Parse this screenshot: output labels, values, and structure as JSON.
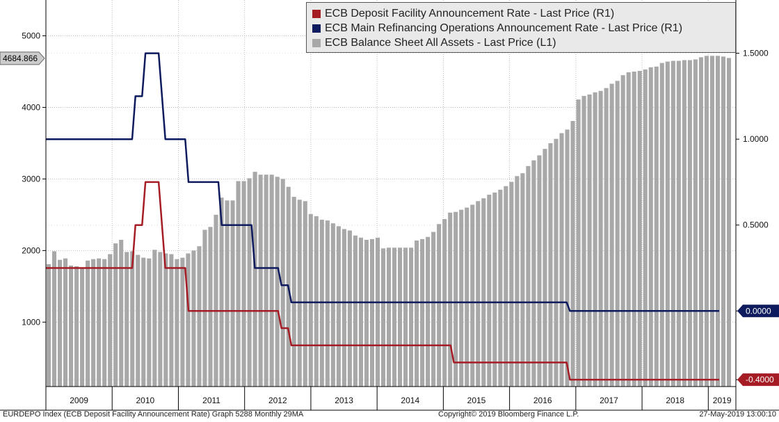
{
  "chart_data": {
    "type": "bar+line",
    "title": "",
    "footer": {
      "left": "EURDEPO Index (ECB Deposit Facility Announcement Rate) Graph 5288  Monthly 29MA",
      "center": "Copyright© 2019 Bloomberg Finance L.P.",
      "right": "27-May-2019 13:00:10"
    },
    "legend": [
      {
        "label": "ECB Deposit Facility Announcement Rate - Last Price (R1)",
        "color": "#a51c24"
      },
      {
        "label": "ECB Main Refinancing Operations Announcement Rate - Last Price (R1)",
        "color": "#0d1a5e"
      },
      {
        "label": "ECB Balance Sheet All Assets - Last Price (L1)",
        "color": "#a8a8a8"
      }
    ],
    "x_axis": {
      "start": "2009-01",
      "end": "2019-05",
      "tick_labels": [
        "2009",
        "2010",
        "2011",
        "2012",
        "2013",
        "2014",
        "2015",
        "2016",
        "2017",
        "2018",
        "2019"
      ]
    },
    "y_left": {
      "ylim": [
        100,
        5500
      ],
      "ticks": [
        1000,
        2000,
        3000,
        4000,
        5000
      ],
      "tick_labels": [
        "1000",
        "2000",
        "3000",
        "4000",
        "5000"
      ]
    },
    "y_right": {
      "ylim": [
        -0.44,
        1.81
      ],
      "ticks": [
        -0.4,
        0.0,
        0.5,
        1.0,
        1.5
      ],
      "tick_labels": [
        "-0.4000",
        "0.0000",
        "0.5000",
        "1.0000",
        "1.5000"
      ]
    },
    "last_value_tags": [
      {
        "axis": "left",
        "value": 4684.866,
        "label": "4684.866",
        "color": "#cccccc",
        "text_color": "#000000"
      },
      {
        "axis": "right",
        "value": 0.0,
        "label": "0.0000",
        "color": "#0d1a5e",
        "text_color": "#ffffff"
      },
      {
        "axis": "right",
        "value": -0.4,
        "label": "-0.4000",
        "color": "#a51c24",
        "text_color": "#ffffff"
      }
    ],
    "series": [
      {
        "name": "ECB Balance Sheet All Assets - Last Price (L1)",
        "type": "bar",
        "axis": "left",
        "color": "#a8a8a8",
        "values": [
          1810,
          1990,
          1870,
          1890,
          1790,
          1780,
          1760,
          1860,
          1880,
          1890,
          1880,
          1950,
          2100,
          2150,
          1980,
          1990,
          1940,
          1900,
          1890,
          2010,
          1980,
          1960,
          1950,
          1880,
          1900,
          1960,
          2000,
          2060,
          2290,
          2330,
          2500,
          2740,
          2700,
          2700,
          2970,
          2970,
          3010,
          3100,
          3060,
          3060,
          3060,
          3030,
          3000,
          2890,
          2750,
          2710,
          2690,
          2510,
          2480,
          2430,
          2420,
          2380,
          2340,
          2300,
          2280,
          2210,
          2180,
          2150,
          2160,
          2180,
          2030,
          2040,
          2040,
          2040,
          2040,
          2040,
          2140,
          2160,
          2190,
          2260,
          2370,
          2440,
          2530,
          2540,
          2570,
          2600,
          2640,
          2690,
          2730,
          2780,
          2810,
          2850,
          2900,
          2960,
          3040,
          3080,
          3180,
          3260,
          3330,
          3420,
          3500,
          3560,
          3640,
          3690,
          3810,
          4110,
          4160,
          4180,
          4210,
          4230,
          4270,
          4330,
          4370,
          4450,
          4490,
          4500,
          4510,
          4530,
          4560,
          4570,
          4620,
          4640,
          4650,
          4650,
          4660,
          4660,
          4670,
          4700,
          4720,
          4720,
          4720,
          4710,
          4690
        ]
      },
      {
        "name": "ECB Main Refinancing Operations Announcement Rate - Last Price (R1)",
        "type": "line",
        "axis": "right",
        "color": "#0d1a5e",
        "values": [
          1.0,
          1.0,
          1.0,
          1.0,
          1.0,
          1.0,
          1.0,
          1.0,
          1.0,
          1.0,
          1.0,
          1.0,
          1.0,
          1.0,
          1.0,
          1.0,
          1.0,
          1.0,
          1.0,
          1.0,
          1.0,
          1.0,
          1.0,
          1.0,
          1.0,
          1.0,
          1.0,
          1.25,
          1.25,
          1.25,
          1.5,
          1.5,
          1.5,
          1.5,
          1.5,
          1.25,
          1.0,
          1.0,
          1.0,
          1.0,
          1.0,
          1.0,
          1.0,
          0.75,
          0.75,
          0.75,
          0.75,
          0.75,
          0.75,
          0.75,
          0.75,
          0.75,
          0.75,
          0.5,
          0.5,
          0.5,
          0.5,
          0.5,
          0.5,
          0.5,
          0.5,
          0.5,
          0.5,
          0.25,
          0.25,
          0.25,
          0.25,
          0.25,
          0.25,
          0.25,
          0.25,
          0.15,
          0.15,
          0.15,
          0.05,
          0.05,
          0.05,
          0.05,
          0.05,
          0.05,
          0.05,
          0.05,
          0.05,
          0.05,
          0.05,
          0.05,
          0.05,
          0.05,
          0.05,
          0.05,
          0.05,
          0.05,
          0.05,
          0.05,
          0.05,
          0.05,
          0.05,
          0.05,
          0.05,
          0.05,
          0.05,
          0.05,
          0.05,
          0.05,
          0.05,
          0.05,
          0.05,
          0.05,
          0.05,
          0.05,
          0.05,
          0.05,
          0.05,
          0.05,
          0.05,
          0.05,
          0.05,
          0.05,
          0.05,
          0.05,
          0.05,
          0.05,
          0.05,
          0.05,
          0.05,
          0.05,
          0.05,
          0.05,
          0.05,
          0.05,
          0.05,
          0.05,
          0.05,
          0.05,
          0.05,
          0.05,
          0.05,
          0.05,
          0.05,
          0.05,
          0.05,
          0.05,
          0.05,
          0.05,
          0.05,
          0.05,
          0.05,
          0.05,
          0.05,
          0.05,
          0.05,
          0.05,
          0.05,
          0.05,
          0.05,
          0.05,
          0.05,
          0.05,
          0.0,
          0.0,
          0.0,
          0.0,
          0.0,
          0.0,
          0.0,
          0.0,
          0.0,
          0.0,
          0.0,
          0.0,
          0.0,
          0.0,
          0.0,
          0.0,
          0.0,
          0.0,
          0.0,
          0.0,
          0.0,
          0.0,
          0.0,
          0.0,
          0.0,
          0.0,
          0.0,
          0.0,
          0.0,
          0.0,
          0.0,
          0.0,
          0.0,
          0.0,
          0.0,
          0.0,
          0.0,
          0.0,
          0.0,
          0.0,
          0.0,
          0.0,
          0.0,
          0.0,
          0.0,
          0.0
        ]
      },
      {
        "name": "ECB Deposit Facility Announcement Rate - Last Price (R1)",
        "type": "line",
        "axis": "right",
        "color": "#a51c24",
        "values": [
          0.25,
          0.25,
          0.25,
          0.25,
          0.25,
          0.25,
          0.25,
          0.25,
          0.25,
          0.25,
          0.25,
          0.25,
          0.25,
          0.25,
          0.25,
          0.25,
          0.25,
          0.25,
          0.25,
          0.25,
          0.25,
          0.25,
          0.25,
          0.25,
          0.25,
          0.25,
          0.25,
          0.5,
          0.5,
          0.5,
          0.75,
          0.75,
          0.75,
          0.75,
          0.75,
          0.5,
          0.25,
          0.25,
          0.25,
          0.25,
          0.25,
          0.25,
          0.25,
          0.0,
          0.0,
          0.0,
          0.0,
          0.0,
          0.0,
          0.0,
          0.0,
          0.0,
          0.0,
          0.0,
          0.0,
          0.0,
          0.0,
          0.0,
          0.0,
          0.0,
          0.0,
          0.0,
          0.0,
          0.0,
          0.0,
          0.0,
          0.0,
          0.0,
          0.0,
          0.0,
          0.0,
          -0.1,
          -0.1,
          -0.1,
          -0.2,
          -0.2,
          -0.2,
          -0.2,
          -0.2,
          -0.2,
          -0.2,
          -0.2,
          -0.2,
          -0.2,
          -0.2,
          -0.2,
          -0.2,
          -0.2,
          -0.2,
          -0.2,
          -0.2,
          -0.2,
          -0.2,
          -0.2,
          -0.2,
          -0.2,
          -0.2,
          -0.2,
          -0.2,
          -0.2,
          -0.2,
          -0.2,
          -0.2,
          -0.2,
          -0.2,
          -0.2,
          -0.2,
          -0.2,
          -0.2,
          -0.2,
          -0.2,
          -0.2,
          -0.2,
          -0.2,
          -0.2,
          -0.2,
          -0.2,
          -0.2,
          -0.2,
          -0.2,
          -0.2,
          -0.2,
          -0.2,
          -0.3,
          -0.3,
          -0.3,
          -0.3,
          -0.3,
          -0.3,
          -0.3,
          -0.3,
          -0.3,
          -0.3,
          -0.3,
          -0.3,
          -0.3,
          -0.3,
          -0.3,
          -0.3,
          -0.3,
          -0.3,
          -0.3,
          -0.3,
          -0.3,
          -0.3,
          -0.3,
          -0.3,
          -0.3,
          -0.3,
          -0.3,
          -0.3,
          -0.3,
          -0.3,
          -0.3,
          -0.3,
          -0.3,
          -0.3,
          -0.3,
          -0.4,
          -0.4,
          -0.4,
          -0.4,
          -0.4,
          -0.4,
          -0.4,
          -0.4,
          -0.4,
          -0.4,
          -0.4,
          -0.4,
          -0.4,
          -0.4,
          -0.4,
          -0.4,
          -0.4,
          -0.4,
          -0.4,
          -0.4,
          -0.4,
          -0.4,
          -0.4,
          -0.4,
          -0.4,
          -0.4,
          -0.4,
          -0.4,
          -0.4,
          -0.4,
          -0.4,
          -0.4,
          -0.4,
          -0.4,
          -0.4,
          -0.4,
          -0.4,
          -0.4,
          -0.4,
          -0.4,
          -0.4,
          -0.4,
          -0.4,
          -0.4,
          -0.4,
          -0.4
        ]
      }
    ]
  }
}
